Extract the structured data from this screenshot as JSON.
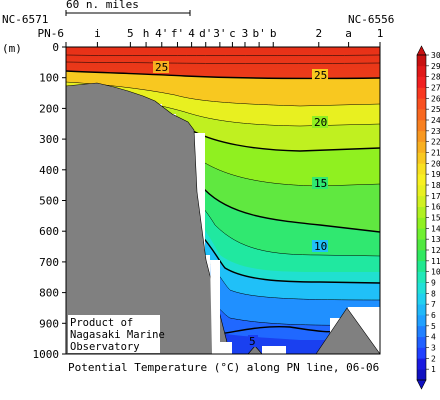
{
  "chart_data": {
    "type": "heatmap",
    "title": "Potential Temperature (°C) along PN line, 06-06",
    "ylabel": "(m)",
    "ylim": [
      0,
      1000
    ],
    "y_ticks": [
      0,
      100,
      200,
      300,
      400,
      500,
      600,
      700,
      800,
      900,
      1000
    ],
    "scale_label": "60 n. miles",
    "station_left": "PN-6",
    "station_left_id": "NC-6571",
    "station_right_id": "NC-6556",
    "stations": [
      "PN-6",
      "i",
      "5",
      "h",
      "4'",
      "f'",
      "4",
      "d'",
      "3'",
      "c",
      "3",
      "b'",
      "b",
      "2",
      "a",
      "1"
    ],
    "colorbar": {
      "min": 1,
      "max": 30,
      "ticks": [
        1,
        2,
        3,
        4,
        5,
        6,
        7,
        8,
        9,
        10,
        11,
        12,
        13,
        14,
        15,
        16,
        17,
        18,
        19,
        20,
        21,
        22,
        23,
        24,
        25,
        26,
        27,
        28,
        29,
        30
      ],
      "colors": [
        "#1010c0",
        "#1a1ae0",
        "#2040ff",
        "#2060ff",
        "#2080ff",
        "#20a0ff",
        "#20b8f8",
        "#20d0f0",
        "#20e0d8",
        "#20e8b8",
        "#20e890",
        "#30e860",
        "#50e840",
        "#70f030",
        "#90f020",
        "#b0f020",
        "#d0f020",
        "#e8f020",
        "#f8f020",
        "#f8e020",
        "#f8c820",
        "#f8b020",
        "#f89820",
        "#f88020",
        "#f86820",
        "#f85020",
        "#f83820",
        "#f02020",
        "#e01818",
        "#c81010"
      ]
    },
    "contour_labels": [
      {
        "value": 25,
        "x_station": "f'",
        "depth": 60
      },
      {
        "value": 25,
        "x_station": "b",
        "depth": 75
      },
      {
        "value": 20,
        "x_station": "b",
        "depth": 190
      },
      {
        "value": 15,
        "x_station": "b",
        "depth": 420
      },
      {
        "value": 10,
        "x_station": "b",
        "depth": 595
      },
      {
        "value": 5,
        "x_station": "3'",
        "depth": 925
      }
    ],
    "annotation": [
      "Product of",
      "Nagasaki Marine",
      "Observatory"
    ]
  }
}
